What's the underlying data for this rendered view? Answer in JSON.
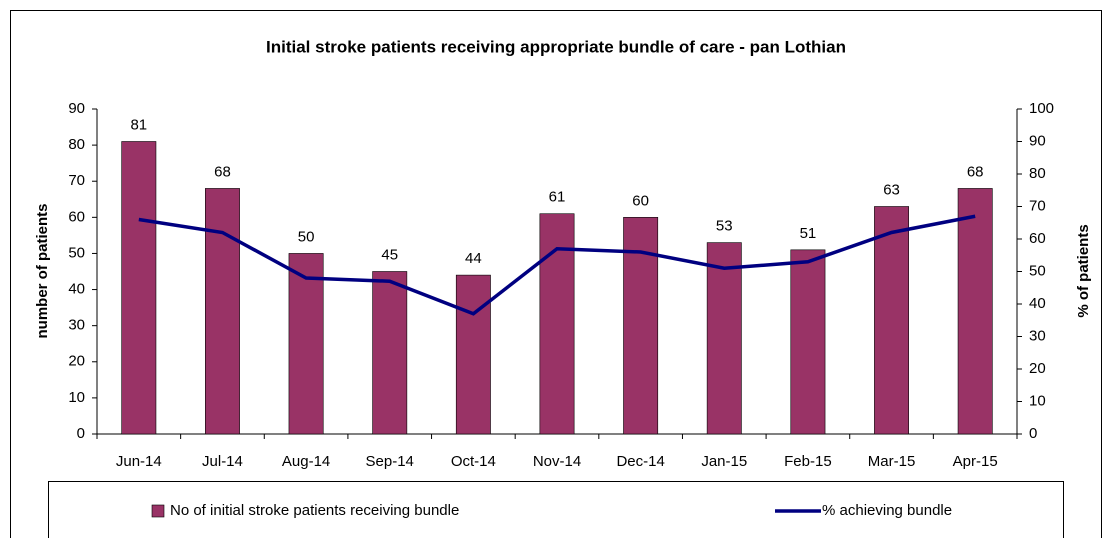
{
  "chart_data": {
    "type": "bar_line",
    "title": "Initial stroke patients receiving appropriate bundle of care - pan Lothian",
    "ylabel": "number of patients",
    "y2label": "% of patients",
    "categories": [
      "Jun-14",
      "Jul-14",
      "Aug-14",
      "Sep-14",
      "Oct-14",
      "Nov-14",
      "Dec-14",
      "Jan-15",
      "Feb-15",
      "Mar-15",
      "Apr-15"
    ],
    "series": [
      {
        "name": "No of initial stroke patients receiving bundle",
        "type": "bar",
        "color": "#993366",
        "axis": "y",
        "data_labels": true,
        "values": [
          81,
          68,
          50,
          45,
          44,
          61,
          60,
          53,
          51,
          63,
          68
        ]
      },
      {
        "name": "% achieving bundle",
        "type": "line",
        "color": "#000080",
        "axis": "y2",
        "values": [
          66,
          62,
          48,
          47,
          37,
          57,
          56,
          51,
          53,
          62,
          67
        ]
      }
    ],
    "ylim": [
      0,
      90
    ],
    "yticks": [
      0,
      10,
      20,
      30,
      40,
      50,
      60,
      70,
      80,
      90
    ],
    "y2lim": [
      0,
      100
    ],
    "y2ticks": [
      0,
      10,
      20,
      30,
      40,
      50,
      60,
      70,
      80,
      90,
      100
    ],
    "legend": "bottom"
  }
}
